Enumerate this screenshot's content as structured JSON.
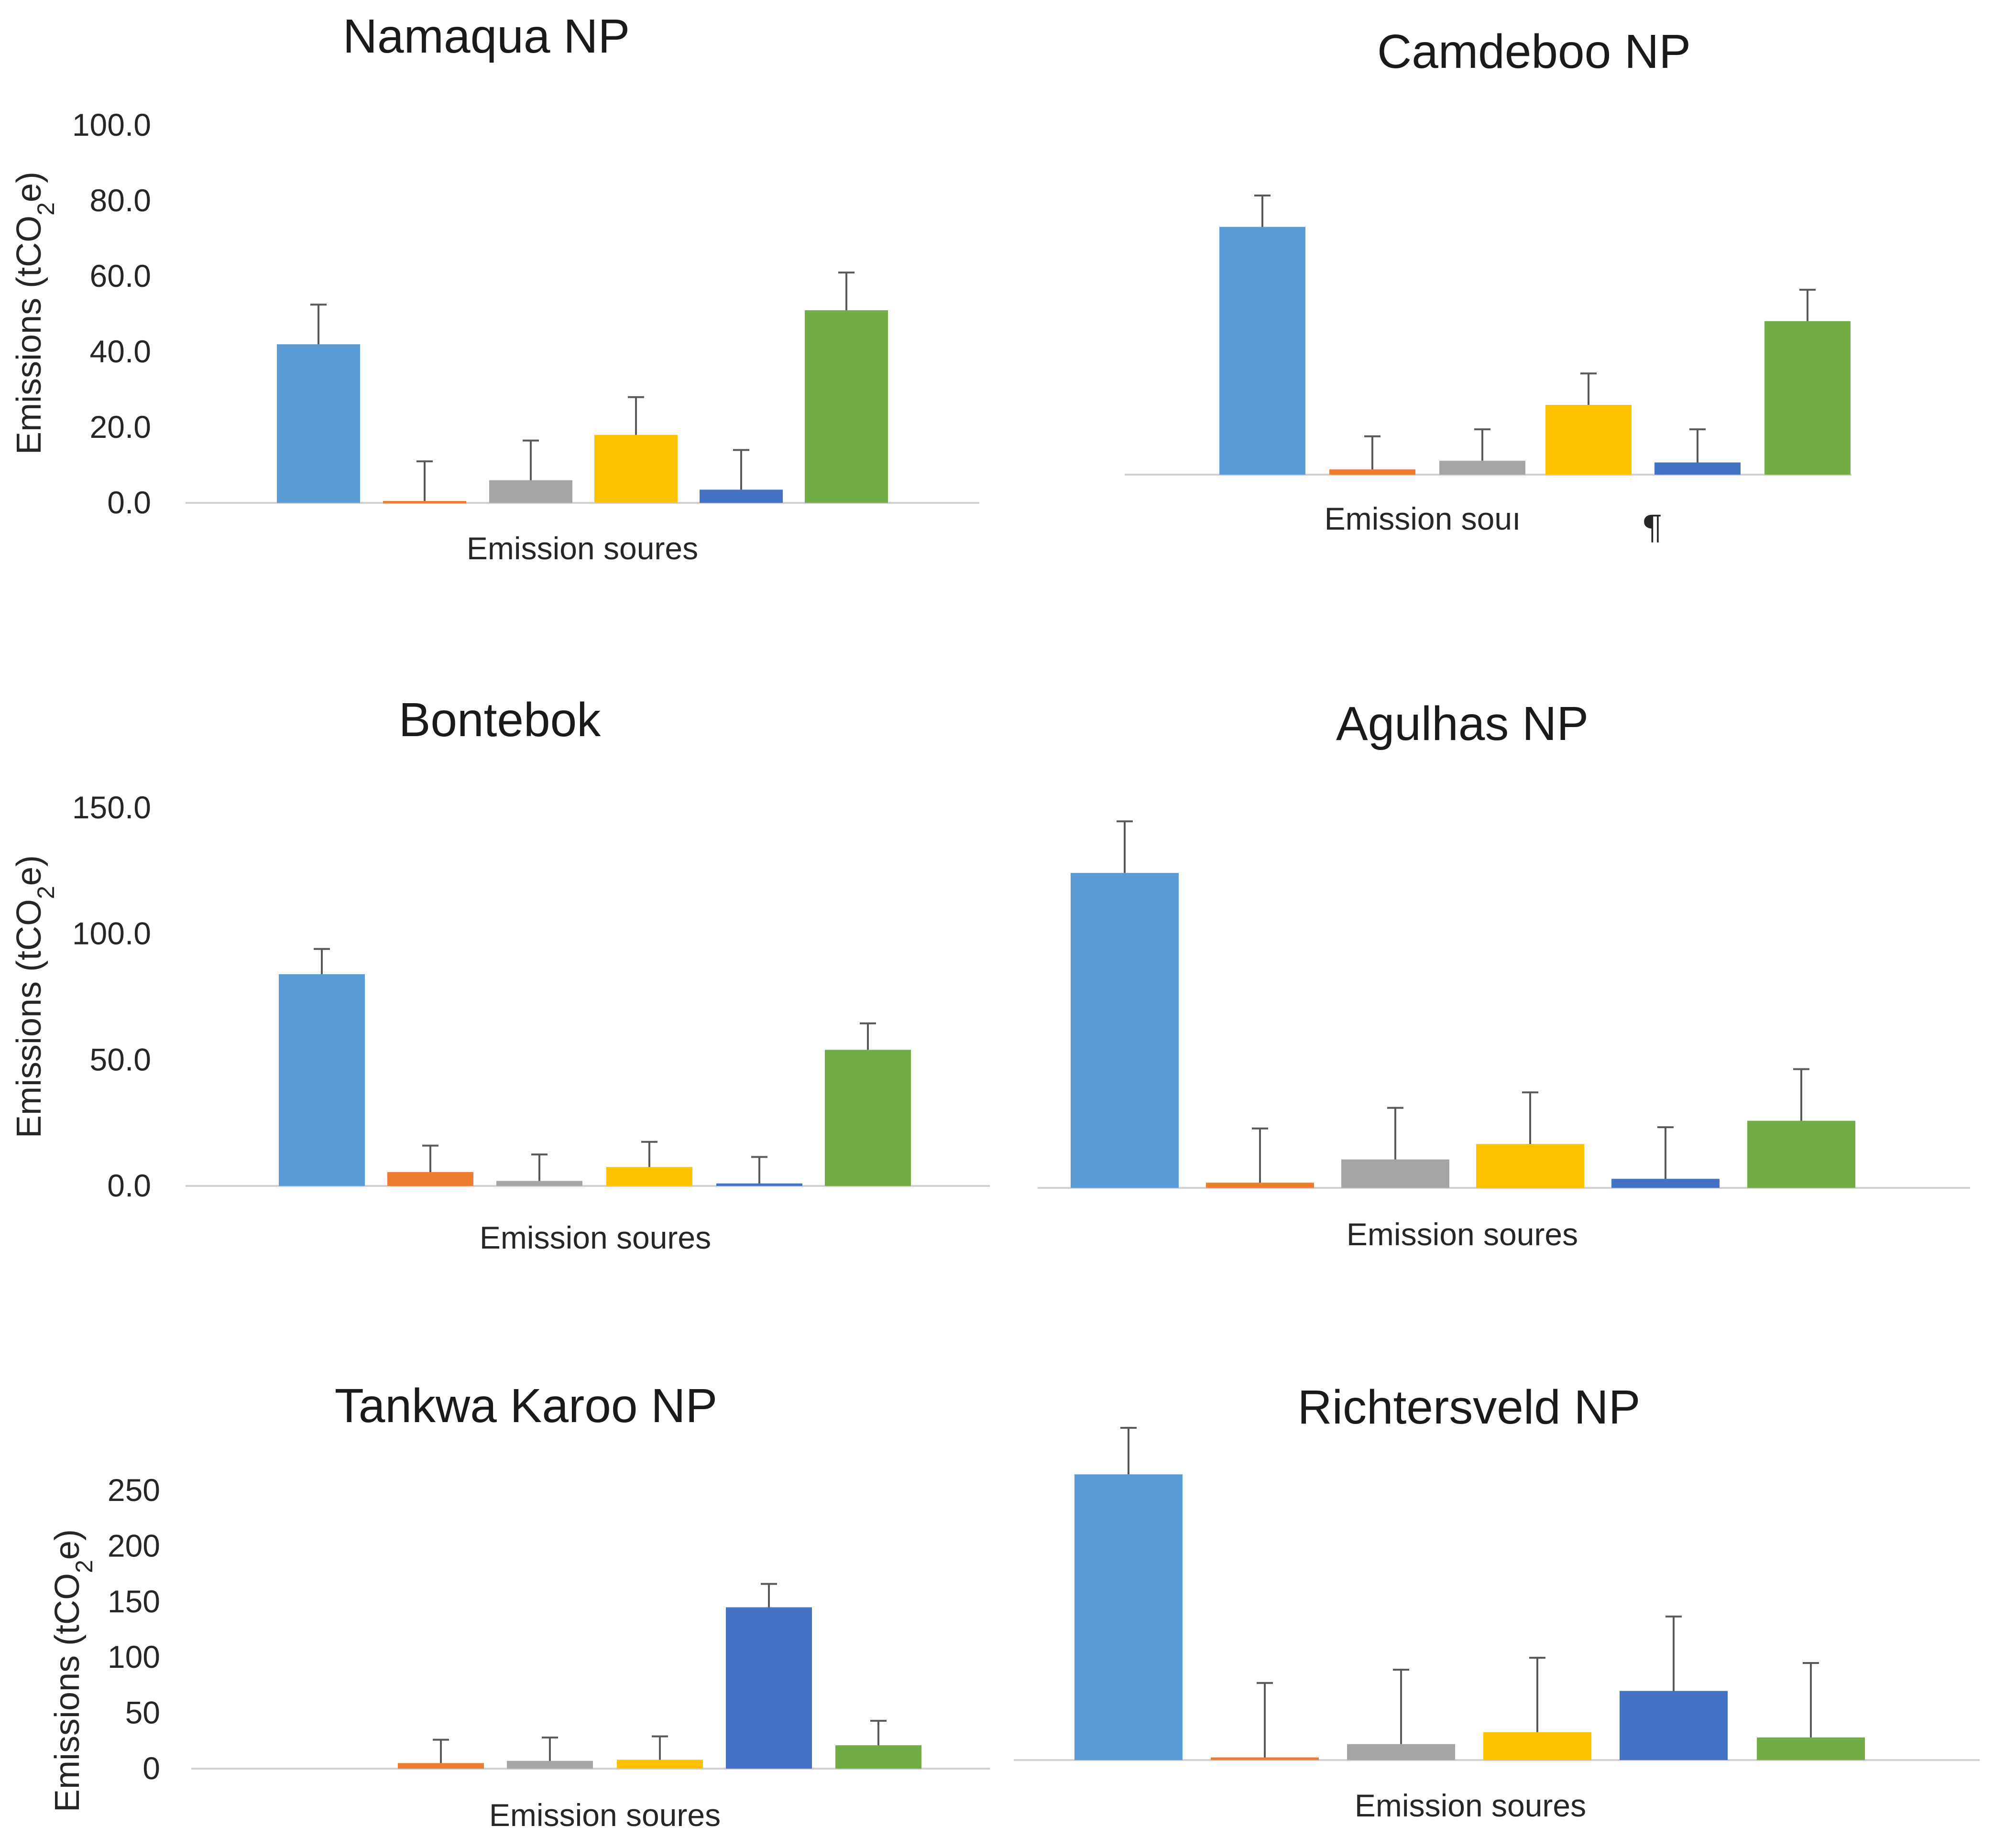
{
  "colors": {
    "series": [
      "#5b9bd5",
      "#ed7d31",
      "#a5a5a5",
      "#ffc000",
      "#4472c4",
      "#70ad47"
    ],
    "errorbar": "#595959",
    "axis": "#d0d0d0"
  },
  "chart_data": [
    {
      "type": "bar",
      "title": "Namaqua NP",
      "xlabel": "Emission soures",
      "ylabel": "Emissions (tCO",
      "ylabel_sub": "2",
      "ylabel_end": "e)",
      "ylim": [
        0,
        100
      ],
      "yticks": [
        "0.0",
        "20.0",
        "40.0",
        "60.0",
        "80.0",
        "100.0"
      ],
      "show_yaxis": true,
      "values": [
        42,
        0.5,
        6,
        18,
        3.5,
        51
      ],
      "errors": [
        10.5,
        10.5,
        10.5,
        10,
        10.5,
        10
      ]
    },
    {
      "type": "bar",
      "title": "Camdeboo NP",
      "xlabel": "Emission souı",
      "xlabel_mark": "¶",
      "ylim": [
        0,
        100
      ],
      "show_yaxis": false,
      "values": [
        71,
        1.5,
        4,
        20,
        3.5,
        44
      ],
      "errors": [
        9,
        9.5,
        9,
        9,
        9.5,
        9
      ]
    },
    {
      "type": "bar",
      "title": "Bontebok",
      "xlabel": "Emission soures",
      "ylabel": "Emissions (tCO",
      "ylabel_sub": "2",
      "ylabel_end": "e)",
      "ylim": [
        0,
        150
      ],
      "yticks": [
        "0.0",
        "50.0",
        "100.0",
        "150.0"
      ],
      "show_yaxis": true,
      "values": [
        84,
        5.5,
        2,
        7.5,
        1,
        54
      ],
      "errors": [
        10,
        10.5,
        10.5,
        10,
        10.5,
        10.5
      ]
    },
    {
      "type": "bar",
      "title": "Agulhas NP",
      "xlabel": "Emission soures",
      "ylim": [
        0,
        150
      ],
      "show_yaxis": false,
      "values": [
        122,
        2,
        11,
        17,
        3.5,
        26
      ],
      "errors": [
        20,
        21,
        20,
        20,
        20,
        20
      ]
    },
    {
      "type": "bar",
      "title": "Tankwa Karoo NP",
      "xlabel": "Emission soures",
      "ylabel": "Emissions (tCO",
      "ylabel_sub": "2",
      "ylabel_end": "e)",
      "ylim": [
        0,
        250
      ],
      "yticks": [
        "0",
        "50",
        "100",
        "150",
        "200",
        "250"
      ],
      "show_yaxis": true,
      "values": [
        0,
        5,
        7,
        8,
        145,
        21
      ],
      "errors": [
        0,
        21,
        21,
        21,
        21,
        22
      ]
    },
    {
      "type": "bar",
      "title": "Richtersveld NP",
      "xlabel": "Emission soures",
      "ylim": [
        0,
        250
      ],
      "show_yaxis": false,
      "values": [
        215,
        2,
        12,
        21,
        52,
        17
      ],
      "errors": [
        35,
        56,
        56,
        56,
        56,
        56
      ]
    }
  ]
}
